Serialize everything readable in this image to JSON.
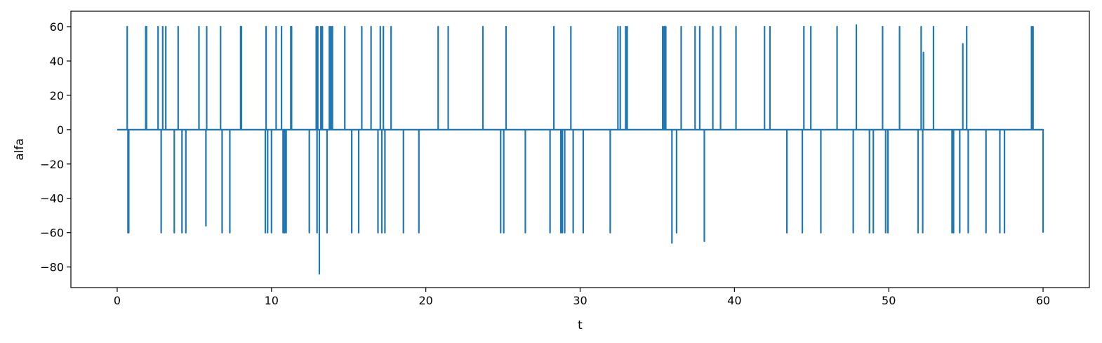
{
  "chart_data": {
    "type": "line",
    "title": "",
    "xlabel": "t",
    "ylabel": "alfa",
    "xlim": [
      -3,
      63
    ],
    "ylim": [
      -92,
      69
    ],
    "xticks": [
      0,
      10,
      20,
      30,
      40,
      50,
      60
    ],
    "xtick_labels": [
      "0",
      "10",
      "20",
      "30",
      "40",
      "50",
      "60"
    ],
    "yticks": [
      60,
      40,
      20,
      0,
      -20,
      -40,
      -60,
      -80
    ],
    "ytick_labels": [
      "60",
      "40",
      "20",
      "0",
      "−20",
      "−40",
      "−60",
      "−80"
    ],
    "grid": false,
    "legend": false,
    "series": [
      {
        "name": "alfa",
        "color": "#1f77b4",
        "baseline": 0,
        "t_start": 0,
        "t_end": 60,
        "end_value": -60,
        "spikes": [
          [
            0.65,
            60
          ],
          [
            0.7,
            -60
          ],
          [
            0.75,
            -60
          ],
          [
            1.85,
            60
          ],
          [
            1.9,
            60
          ],
          [
            2.65,
            60
          ],
          [
            2.85,
            -60
          ],
          [
            2.95,
            60
          ],
          [
            3.15,
            60
          ],
          [
            3.7,
            -60
          ],
          [
            3.95,
            60
          ],
          [
            4.2,
            -60
          ],
          [
            4.45,
            -60
          ],
          [
            5.3,
            60
          ],
          [
            5.75,
            -56
          ],
          [
            5.8,
            60
          ],
          [
            6.7,
            60
          ],
          [
            6.8,
            -60
          ],
          [
            7.3,
            -60
          ],
          [
            8.0,
            60
          ],
          [
            8.05,
            60
          ],
          [
            9.6,
            -60
          ],
          [
            9.65,
            60
          ],
          [
            9.75,
            -60
          ],
          [
            10.0,
            -60
          ],
          [
            10.3,
            60
          ],
          [
            10.65,
            60
          ],
          [
            10.75,
            -60
          ],
          [
            10.85,
            -60
          ],
          [
            10.95,
            -60
          ],
          [
            11.25,
            60
          ],
          [
            11.3,
            60
          ],
          [
            12.45,
            -60
          ],
          [
            12.9,
            60
          ],
          [
            12.95,
            -60
          ],
          [
            13.0,
            60
          ],
          [
            13.1,
            -84
          ],
          [
            13.2,
            60
          ],
          [
            13.3,
            60
          ],
          [
            13.6,
            -60
          ],
          [
            13.75,
            60
          ],
          [
            13.85,
            60
          ],
          [
            13.95,
            60
          ],
          [
            14.75,
            60
          ],
          [
            15.2,
            -60
          ],
          [
            15.65,
            -60
          ],
          [
            15.85,
            60
          ],
          [
            16.45,
            60
          ],
          [
            16.9,
            -60
          ],
          [
            17.05,
            60
          ],
          [
            17.15,
            -60
          ],
          [
            17.25,
            60
          ],
          [
            17.35,
            -60
          ],
          [
            17.75,
            60
          ],
          [
            18.55,
            -60
          ],
          [
            19.55,
            -60
          ],
          [
            20.8,
            60
          ],
          [
            21.45,
            60
          ],
          [
            23.7,
            60
          ],
          [
            24.85,
            -60
          ],
          [
            25.05,
            -60
          ],
          [
            25.2,
            60
          ],
          [
            26.45,
            -60
          ],
          [
            28.05,
            -60
          ],
          [
            28.3,
            60
          ],
          [
            28.75,
            -60
          ],
          [
            28.85,
            -60
          ],
          [
            29.0,
            -60
          ],
          [
            29.4,
            60
          ],
          [
            29.55,
            -60
          ],
          [
            30.2,
            -60
          ],
          [
            31.95,
            -60
          ],
          [
            32.45,
            60
          ],
          [
            32.6,
            60
          ],
          [
            32.95,
            60
          ],
          [
            33.05,
            60
          ],
          [
            35.35,
            60
          ],
          [
            35.45,
            60
          ],
          [
            35.55,
            60
          ],
          [
            35.95,
            -66
          ],
          [
            36.25,
            -60
          ],
          [
            36.55,
            60
          ],
          [
            37.45,
            60
          ],
          [
            37.75,
            60
          ],
          [
            38.05,
            -65
          ],
          [
            38.6,
            60
          ],
          [
            39.1,
            60
          ],
          [
            40.1,
            60
          ],
          [
            41.95,
            60
          ],
          [
            42.3,
            60
          ],
          [
            43.4,
            -60
          ],
          [
            44.4,
            -60
          ],
          [
            44.5,
            60
          ],
          [
            44.95,
            60
          ],
          [
            45.6,
            -60
          ],
          [
            46.65,
            60
          ],
          [
            47.7,
            -60
          ],
          [
            47.9,
            61
          ],
          [
            48.75,
            -60
          ],
          [
            49.0,
            -60
          ],
          [
            49.6,
            60
          ],
          [
            49.8,
            -60
          ],
          [
            49.95,
            -60
          ],
          [
            50.7,
            60
          ],
          [
            51.9,
            -60
          ],
          [
            52.1,
            60
          ],
          [
            52.2,
            -60
          ],
          [
            52.25,
            45
          ],
          [
            52.9,
            60
          ],
          [
            54.1,
            -60
          ],
          [
            54.2,
            -60
          ],
          [
            54.6,
            -60
          ],
          [
            54.8,
            50
          ],
          [
            55.05,
            60
          ],
          [
            55.15,
            -60
          ],
          [
            56.3,
            -60
          ],
          [
            57.2,
            -60
          ],
          [
            57.5,
            -60
          ],
          [
            59.25,
            60
          ],
          [
            59.35,
            60
          ]
        ]
      }
    ]
  }
}
